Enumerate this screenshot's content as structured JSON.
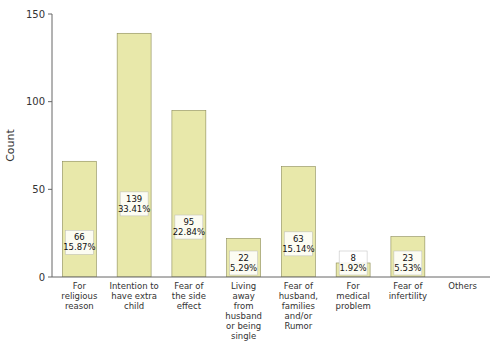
{
  "chart_data": {
    "type": "bar",
    "categories": [
      "For\nreligious\nreason",
      "Intention to\nhave extra\nchild",
      "Fear of\nthe side\neffect",
      "Living\naway\nfrom\nhusband\nor being\nsingle",
      "Fear of\nhusband,\nfamilies\nand/or\nRumor",
      "For\nmedical\nproblem",
      "Fear of\ninfertility",
      "Others"
    ],
    "values": [
      66,
      139,
      95,
      22,
      63,
      8,
      23,
      0
    ],
    "value_labels": [
      "66\n15.87%",
      "139\n33.41%",
      "95\n22.84%",
      "22\n5.29%",
      "63\n15.14%",
      "8\n1.92%",
      "23\n5.53%",
      null
    ],
    "data_labels": true,
    "color": "#e8e8aa",
    "ylabel": "Count",
    "ylim": [
      0,
      150
    ],
    "yticks": [
      0,
      50,
      100,
      150
    ],
    "grid": false
  }
}
